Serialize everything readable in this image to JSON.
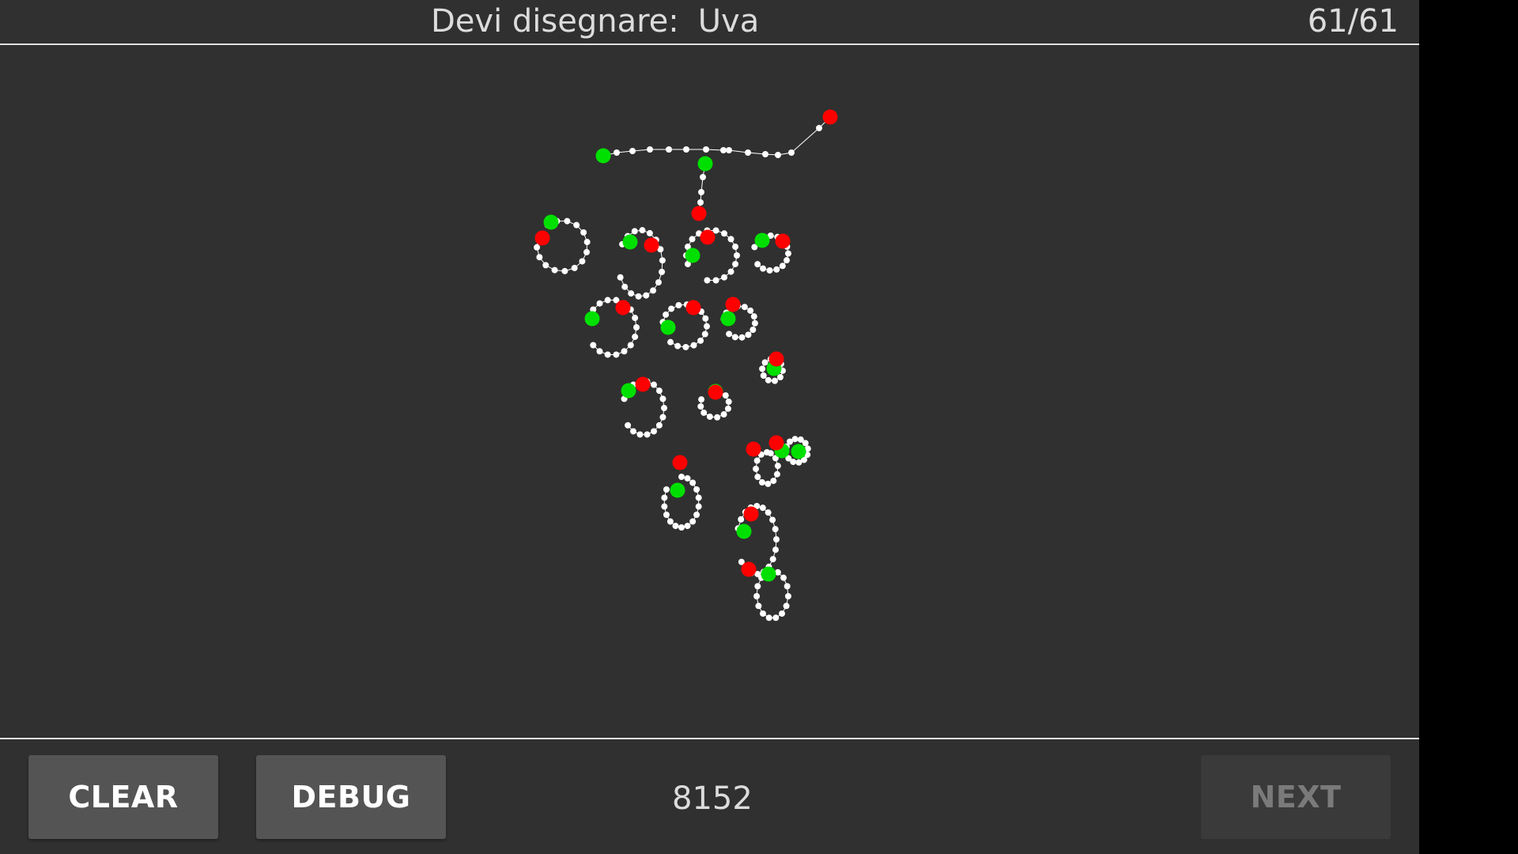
{
  "header": {
    "prompt_label": "Devi disegnare:",
    "target_word": "Uva",
    "counter": "61/61"
  },
  "footer": {
    "clear_label": "CLEAR",
    "debug_label": "DEBUG",
    "score": "8152",
    "next_label": "NEXT"
  },
  "colors": {
    "background": "#303030",
    "stroke": "#ffffff",
    "start_point": "#00e000",
    "end_point": "#ff0000",
    "divider": "#e0e0e0"
  }
}
